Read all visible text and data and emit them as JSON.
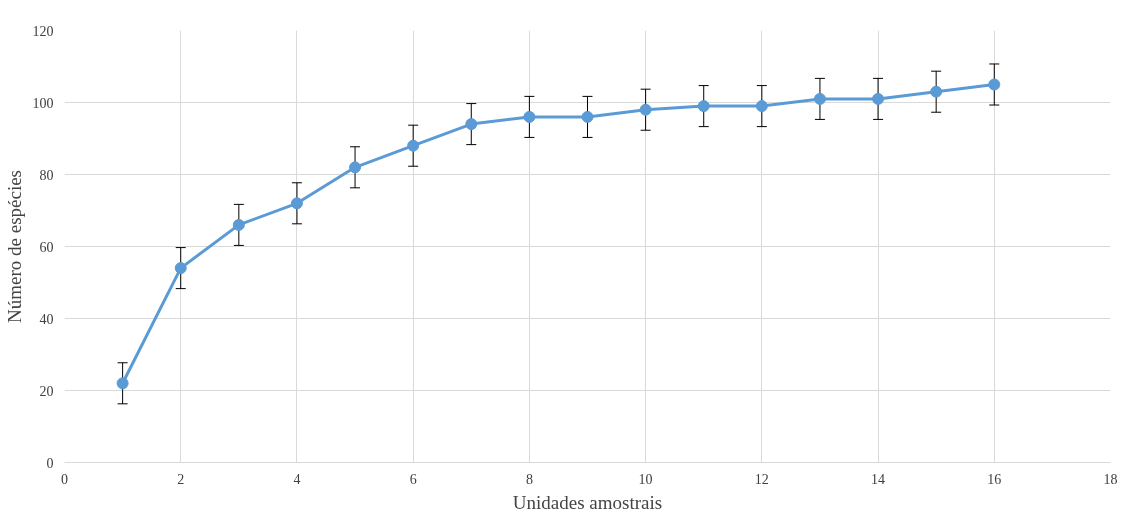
{
  "chart_data": {
    "type": "line",
    "xlabel": "Unidades amostrais",
    "ylabel": "Número de espécies",
    "x": [
      1,
      2,
      3,
      4,
      5,
      6,
      7,
      8,
      9,
      10,
      11,
      12,
      13,
      14,
      15,
      16
    ],
    "series": [
      {
        "color": "#5b9bd5",
        "values": [
          22,
          54,
          66,
          72,
          82,
          88,
          94,
          96,
          96,
          98,
          99,
          99,
          101,
          101,
          103,
          105
        ],
        "errors": [
          5.7,
          5.7,
          5.7,
          5.7,
          5.7,
          5.7,
          5.7,
          5.7,
          5.7,
          5.7,
          5.7,
          5.7,
          5.7,
          5.7,
          5.7,
          5.7
        ]
      }
    ],
    "xlim": [
      0,
      18
    ],
    "xticks": [
      0,
      2,
      4,
      6,
      8,
      10,
      12,
      14,
      16,
      18
    ],
    "ylim": [
      0,
      120
    ],
    "yticks": [
      0,
      20,
      40,
      60,
      80,
      100,
      120
    ],
    "grid": true,
    "marker": "circle",
    "line_style": "solid"
  }
}
